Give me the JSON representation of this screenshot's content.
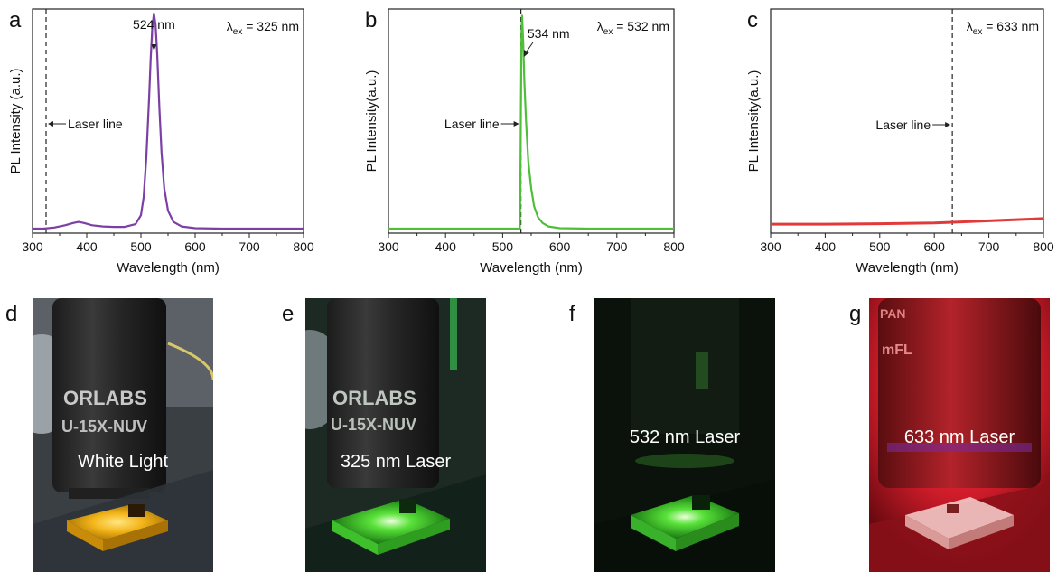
{
  "chart_data": [
    {
      "panel": "a",
      "type": "line",
      "xlabel": "Wavelength (nm)",
      "ylabel": "PL Intensity (a.u.)",
      "xlim": [
        300,
        800
      ],
      "xticks": [
        "300",
        "400",
        "500",
        "600",
        "700",
        "800"
      ],
      "excitation_label": "λ",
      "excitation_sub": "ex",
      "excitation_value": " = 325 nm",
      "laser_line_x": 325,
      "laser_label": "Laser line",
      "laser_label_side": "right",
      "peak_label": "524 nm",
      "peak_x": 524,
      "color": "#7b3fa6",
      "series": [
        {
          "x": [
            300,
            320,
            340,
            360,
            375,
            385,
            395,
            410,
            430,
            450,
            470,
            490,
            500,
            505,
            510,
            515,
            518,
            521,
            524,
            527,
            530,
            534,
            538,
            543,
            550,
            560,
            575,
            600,
            650,
            700,
            750,
            800
          ],
          "y": [
            0.02,
            0.02,
            0.025,
            0.035,
            0.045,
            0.05,
            0.045,
            0.035,
            0.03,
            0.028,
            0.028,
            0.04,
            0.08,
            0.16,
            0.34,
            0.6,
            0.78,
            0.92,
            0.98,
            0.93,
            0.8,
            0.56,
            0.36,
            0.2,
            0.1,
            0.05,
            0.03,
            0.022,
            0.02,
            0.02,
            0.02,
            0.02
          ]
        }
      ]
    },
    {
      "panel": "b",
      "type": "line",
      "xlabel": "Wavelength (nm)",
      "ylabel": "PL Intensity(a.u.)",
      "xlim": [
        300,
        800
      ],
      "xticks": [
        "300",
        "400",
        "500",
        "600",
        "700",
        "800"
      ],
      "excitation_label": "λ",
      "excitation_sub": "ex",
      "excitation_value": " = 532 nm",
      "laser_line_x": 532,
      "laser_label": "Laser line",
      "laser_label_side": "left",
      "peak_label": "534 nm",
      "peak_x": 534,
      "color": "#4fbf3a",
      "series": [
        {
          "x": [
            300,
            400,
            500,
            525,
            530,
            531,
            532,
            533,
            534,
            536,
            538,
            541,
            545,
            550,
            555,
            562,
            570,
            580,
            600,
            650,
            700,
            800
          ],
          "y": [
            0.02,
            0.02,
            0.02,
            0.02,
            0.02,
            0.2,
            0.55,
            0.9,
            0.97,
            0.85,
            0.68,
            0.5,
            0.32,
            0.2,
            0.12,
            0.07,
            0.045,
            0.03,
            0.022,
            0.02,
            0.02,
            0.02
          ]
        }
      ]
    },
    {
      "panel": "c",
      "type": "line",
      "xlabel": "Wavelength (nm)",
      "ylabel": "PL Intensity(a.u.)",
      "xlim": [
        300,
        800
      ],
      "xticks": [
        "300",
        "400",
        "500",
        "600",
        "700",
        "800"
      ],
      "excitation_label": "λ",
      "excitation_sub": "ex",
      "excitation_value": " = 633 nm",
      "laser_line_x": 633,
      "laser_label": "Laser line",
      "laser_label_side": "left",
      "peak_label": "",
      "color": "#e03a3a",
      "series": [
        {
          "x": [
            300,
            400,
            500,
            600,
            650,
            700,
            750,
            800
          ],
          "y": [
            0.04,
            0.04,
            0.042,
            0.045,
            0.05,
            0.055,
            0.06,
            0.065
          ]
        }
      ]
    }
  ],
  "photos": [
    {
      "label": "d",
      "caption": "White Light",
      "scene": "white",
      "lens_text_1": "ORLABS",
      "lens_text_2": "U-15X-NUV"
    },
    {
      "label": "e",
      "caption": "325 nm Laser",
      "scene": "uv",
      "lens_text_1": "ORLABS",
      "lens_text_2": "U-15X-NUV"
    },
    {
      "label": "f",
      "caption": "532 nm Laser",
      "scene": "green",
      "lens_text_1": "",
      "lens_text_2": ""
    },
    {
      "label": "g",
      "caption": "633 nm Laser",
      "scene": "red",
      "lens_text_1": "PAN",
      "lens_text_2": "mFL"
    }
  ]
}
